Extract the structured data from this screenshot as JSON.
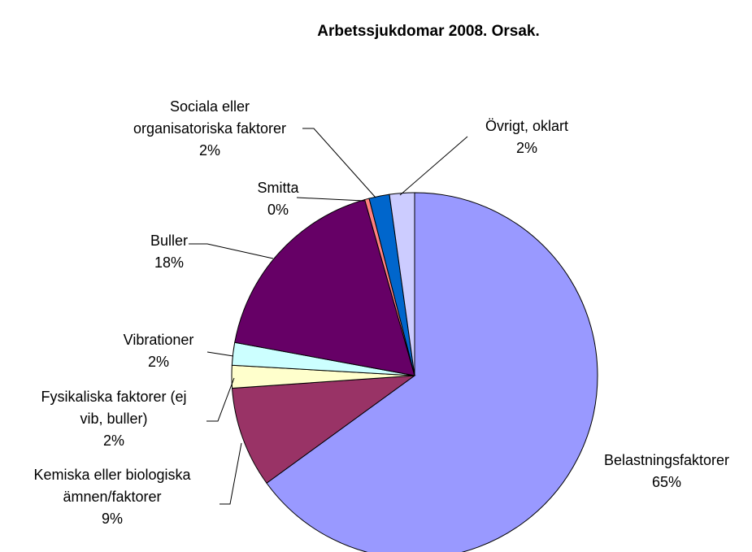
{
  "chart_data": {
    "type": "pie",
    "title": "Arbetssjukdomar 2008. Orsak.",
    "categories": [
      "Belastningsfaktorer",
      "Kemiska eller biologiska\nämnen/faktorer",
      "Fysikaliska faktorer (ej\nvib, buller)",
      "Vibrationer",
      "Buller",
      "Smitta",
      "Sociala eller\norganisatoriska faktorer",
      "Övrigt, oklart"
    ],
    "values": [
      65,
      8.9,
      2,
      2,
      17.7,
      0.4,
      1.8,
      2.2
    ],
    "value_labels": [
      "65%",
      "9%",
      "2%",
      "2%",
      "18%",
      "0%",
      "2%",
      "2%"
    ],
    "colors": [
      "#9999ff",
      "#993366",
      "#ffffcc",
      "#ccffff",
      "#660066",
      "#ff8080",
      "#0066cc",
      "#ccccff"
    ]
  }
}
